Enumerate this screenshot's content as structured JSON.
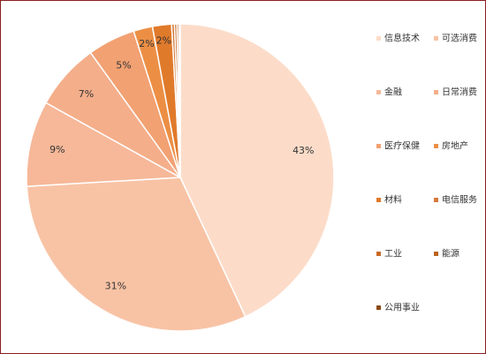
{
  "chart_data": {
    "type": "pie",
    "slices": [
      {
        "label": "信息技术",
        "value": 43,
        "display": "43%",
        "color": "#fcdcc9"
      },
      {
        "label": "可选消费",
        "value": 31,
        "display": "31%",
        "color": "#f8c3a5"
      },
      {
        "label": "金融",
        "value": 9,
        "display": "9%",
        "color": "#f6b899"
      },
      {
        "label": "日常消费",
        "value": 7,
        "display": "7%",
        "color": "#f4ae8a"
      },
      {
        "label": "医疗保健",
        "value": 5,
        "display": "5%",
        "color": "#f2a172"
      },
      {
        "label": "房地产",
        "value": 2,
        "display": "2%",
        "color": "#ec8f45"
      },
      {
        "label": "材料",
        "value": 2,
        "display": "2%",
        "color": "#e07a2b"
      },
      {
        "label": "电信服务",
        "value": 0.3,
        "display": "",
        "color": "#d67a3a"
      },
      {
        "label": "工业",
        "value": 0.25,
        "display": "",
        "color": "#c96a26"
      },
      {
        "label": "能源",
        "value": 0.2,
        "display": "",
        "color": "#b9641f"
      },
      {
        "label": "公用事业",
        "value": 0.15,
        "display": "",
        "color": "#8c4a14"
      }
    ],
    "legend_position": "right"
  }
}
